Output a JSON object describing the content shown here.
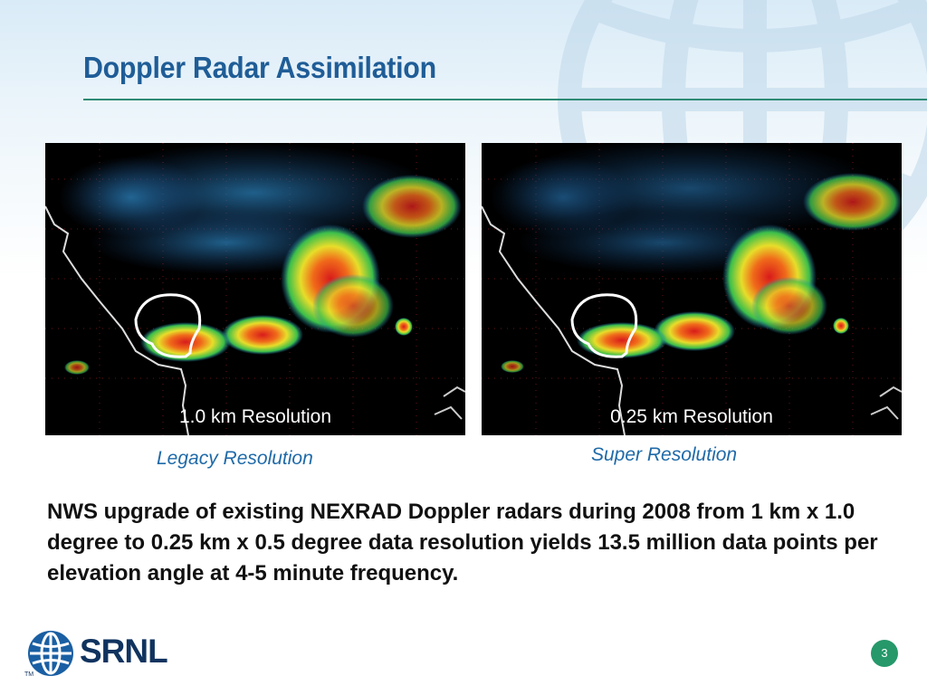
{
  "slide": {
    "title": "Doppler Radar Assimilation",
    "page_number": "3",
    "body": "NWS upgrade of existing NEXRAD Doppler radars during 2008 from 1 km x 1.0 degree to 0.25 km x 0.5 degree data resolution yields 13.5 million data points per elevation angle at 4-5 minute frequency."
  },
  "images": [
    {
      "overlay_label": "1.0 km Resolution",
      "caption": "Legacy Resolution"
    },
    {
      "overlay_label": "0.25 km Resolution",
      "caption": "Super Resolution"
    }
  ],
  "logo": {
    "text": "SRNL",
    "trademark": "TM"
  },
  "colors": {
    "title": "#1f5d97",
    "rule": "#2d8a74",
    "caption": "#1f6aa8",
    "page_badge": "#26986a",
    "logo": "#10335f"
  },
  "icons": [
    "globe-logo-icon",
    "globe-watermark-icon"
  ]
}
